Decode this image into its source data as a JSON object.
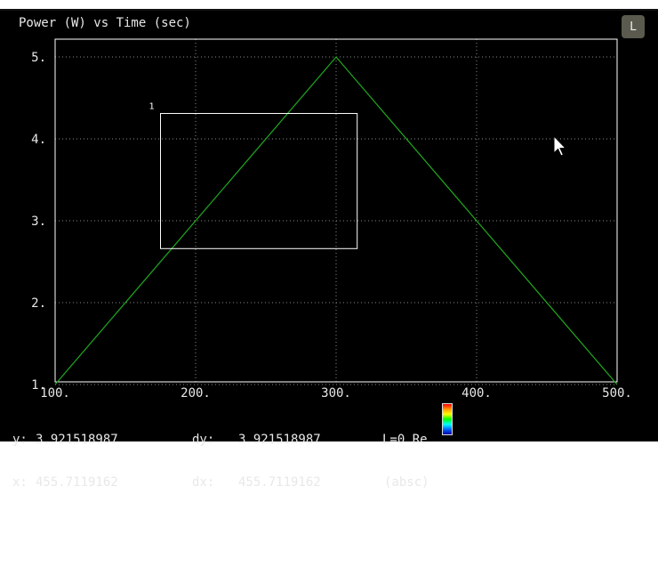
{
  "title": "Power (W) vs Time (sec)",
  "legend_button_label": "L",
  "chart_data": {
    "type": "line",
    "title": "Power (W) vs Time (sec)",
    "xlabel": "Time (sec)",
    "ylabel": "Power (W)",
    "xlim": [
      100,
      500
    ],
    "ylim": [
      1,
      5
    ],
    "x_ticks": [
      100,
      200,
      300,
      400,
      500
    ],
    "x_tick_labels": [
      "100.",
      "200.",
      "300.",
      "400.",
      "500."
    ],
    "y_ticks": [
      1,
      2,
      3,
      4,
      5
    ],
    "y_tick_labels": [
      "1.",
      "2.",
      "3.",
      "4.",
      "5."
    ],
    "grid": true,
    "series": [
      {
        "x": [
          100,
          300,
          500
        ],
        "y": [
          1,
          5,
          1
        ],
        "color": "#1faa1f"
      }
    ],
    "annotations": [
      {
        "label": "1",
        "x0": 175,
        "x1": 315,
        "y0": 2.66,
        "y1": 4.31,
        "shape": "rectangle",
        "color": "#ffffff"
      }
    ]
  },
  "readout": {
    "y_label": "y:",
    "y_value": "3.921518987",
    "dy_label": "dy:",
    "dy_value": "3.921518987",
    "x_label": "x:",
    "x_value": "455.7119162",
    "dx_label": "dx:",
    "dx_value": "455.7119162",
    "level_label": "L=0 Re",
    "mode_label": "(absc)"
  },
  "colors": {
    "background": "#000000",
    "frame": "#ffffff",
    "grid": "#8a8a8a",
    "text": "#e8e8e8"
  }
}
